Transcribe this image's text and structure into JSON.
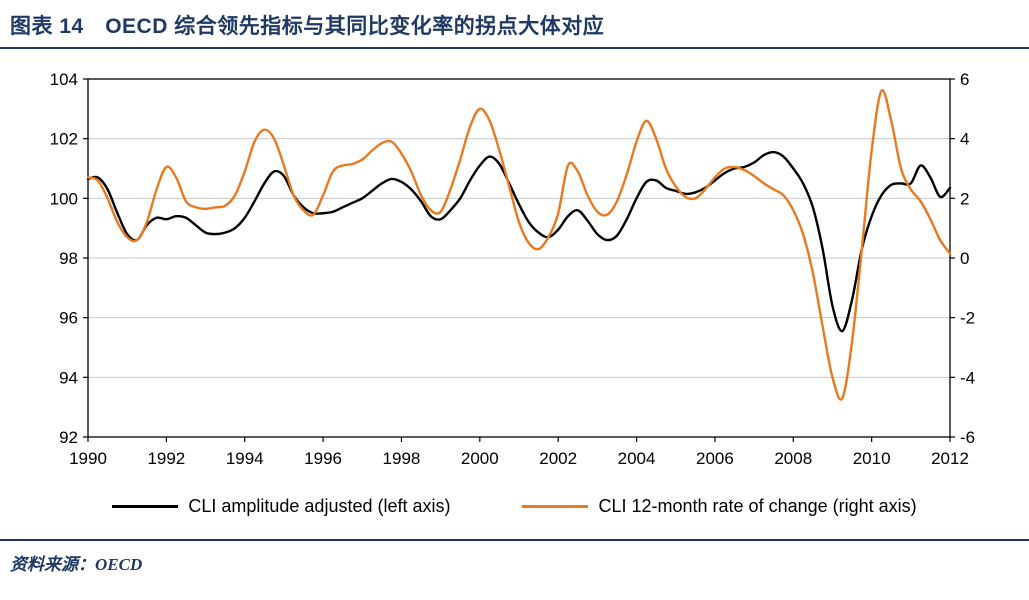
{
  "title": "图表 14　OECD 综合领先指标与其同比变化率的拐点大体对应",
  "source": "资料来源：OECD",
  "colors": {
    "accent_navy": "#1f3864",
    "cli_line": "#000000",
    "roc_line": "#e8791e",
    "gridline": "#c9c9c9",
    "frame": "#000000"
  },
  "legend": [
    {
      "label": "CLI amplitude adjusted (left axis)",
      "color": "#000000"
    },
    {
      "label": "CLI 12-month rate of change (right axis)",
      "color": "#e8791e"
    }
  ],
  "chart_data": {
    "type": "line",
    "grid": "horizontal",
    "legend_position": "bottom",
    "x_axis": {
      "min": 1990,
      "max": 2012,
      "tick_step": 2,
      "ticks": [
        1990,
        1992,
        1994,
        1996,
        1998,
        2000,
        2002,
        2004,
        2006,
        2008,
        2010,
        2012
      ]
    },
    "left_axis": {
      "min": 92,
      "max": 104,
      "tick_step": 2,
      "ticks": [
        92,
        94,
        96,
        98,
        100,
        102,
        104
      ]
    },
    "right_axis": {
      "min": -6,
      "max": 6,
      "tick_step": 2,
      "ticks": [
        -6,
        -4,
        -2,
        0,
        2,
        4,
        6
      ]
    },
    "x": [
      1990,
      1990.25,
      1990.5,
      1990.75,
      1991,
      1991.25,
      1991.5,
      1991.75,
      1992,
      1992.25,
      1992.5,
      1992.75,
      1993,
      1993.25,
      1993.5,
      1993.75,
      1994,
      1994.25,
      1994.5,
      1994.75,
      1995,
      1995.25,
      1995.5,
      1995.75,
      1996,
      1996.25,
      1996.5,
      1996.75,
      1997,
      1997.25,
      1997.5,
      1997.75,
      1998,
      1998.25,
      1998.5,
      1998.75,
      1999,
      1999.25,
      1999.5,
      1999.75,
      2000,
      2000.25,
      2000.5,
      2000.75,
      2001,
      2001.25,
      2001.5,
      2001.75,
      2002,
      2002.25,
      2002.5,
      2002.75,
      2003,
      2003.25,
      2003.5,
      2003.75,
      2004,
      2004.25,
      2004.5,
      2004.75,
      2005,
      2005.25,
      2005.5,
      2005.75,
      2006,
      2006.25,
      2006.5,
      2006.75,
      2007,
      2007.25,
      2007.5,
      2007.75,
      2008,
      2008.25,
      2008.5,
      2008.75,
      2009,
      2009.25,
      2009.5,
      2009.75,
      2010,
      2010.25,
      2010.5,
      2010.75,
      2011,
      2011.25,
      2011.5,
      2011.75,
      2012
    ],
    "series": [
      {
        "name": "CLI amplitude adjusted (left axis)",
        "axis": "left",
        "color": "#000000",
        "values": [
          100.65,
          100.7,
          100.3,
          99.5,
          98.8,
          98.6,
          99.1,
          99.35,
          99.3,
          99.4,
          99.35,
          99.1,
          98.85,
          98.8,
          98.85,
          99.0,
          99.35,
          99.9,
          100.5,
          100.9,
          100.75,
          100.1,
          99.7,
          99.5,
          99.5,
          99.55,
          99.7,
          99.85,
          100.0,
          100.25,
          100.5,
          100.65,
          100.55,
          100.3,
          99.9,
          99.4,
          99.3,
          99.6,
          100.0,
          100.6,
          101.1,
          101.4,
          101.15,
          100.5,
          99.8,
          99.2,
          98.85,
          98.7,
          98.95,
          99.4,
          99.6,
          99.25,
          98.8,
          98.6,
          98.75,
          99.3,
          100.0,
          100.55,
          100.6,
          100.35,
          100.25,
          100.15,
          100.2,
          100.35,
          100.6,
          100.85,
          101.0,
          101.05,
          101.2,
          101.45,
          101.55,
          101.4,
          101.0,
          100.5,
          99.7,
          98.3,
          96.4,
          95.55,
          96.6,
          98.3,
          99.4,
          100.1,
          100.45,
          100.5,
          100.5,
          101.1,
          100.7,
          100.05,
          100.35
        ]
      },
      {
        "name": "CLI 12-month rate of change (right axis)",
        "axis": "right",
        "color": "#e8791e",
        "values": [
          2.7,
          2.6,
          2.0,
          1.2,
          0.7,
          0.6,
          1.2,
          2.3,
          3.05,
          2.7,
          1.9,
          1.7,
          1.65,
          1.7,
          1.75,
          2.1,
          2.9,
          3.9,
          4.3,
          4.0,
          3.1,
          2.1,
          1.6,
          1.45,
          2.1,
          2.9,
          3.1,
          3.15,
          3.3,
          3.6,
          3.85,
          3.9,
          3.5,
          2.9,
          2.1,
          1.6,
          1.55,
          2.3,
          3.3,
          4.4,
          5.0,
          4.6,
          3.6,
          2.4,
          1.2,
          0.5,
          0.3,
          0.7,
          1.5,
          3.1,
          2.9,
          2.1,
          1.55,
          1.45,
          1.9,
          2.8,
          3.9,
          4.6,
          4.0,
          3.0,
          2.4,
          2.05,
          2.0,
          2.3,
          2.7,
          3.0,
          3.05,
          2.95,
          2.75,
          2.5,
          2.3,
          2.1,
          1.6,
          0.8,
          -0.5,
          -2.3,
          -4.0,
          -4.7,
          -2.8,
          0.3,
          3.6,
          5.6,
          4.6,
          3.0,
          2.3,
          1.9,
          1.3,
          0.6,
          0.15
        ]
      }
    ]
  }
}
